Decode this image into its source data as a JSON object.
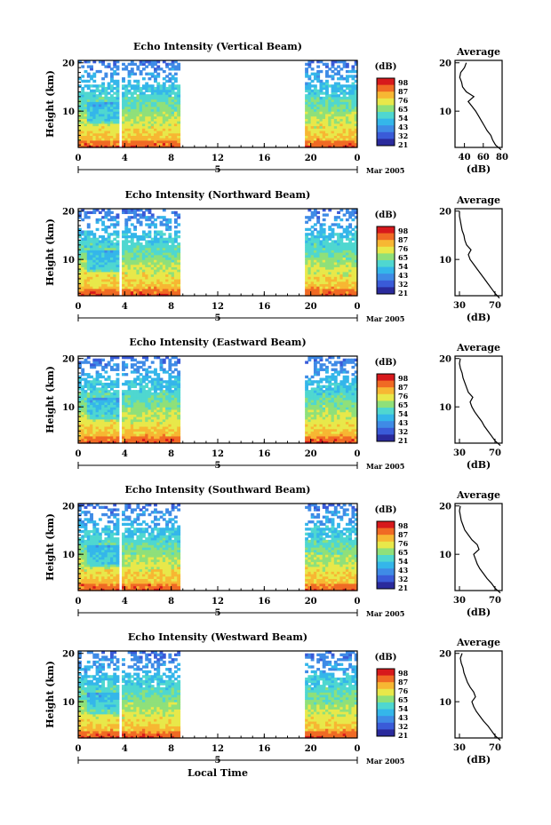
{
  "chart_data": [
    {
      "type": "heatmap",
      "title": "Echo Intensity (Vertical Beam)",
      "ylabel": "Height (km)",
      "x_ticks": [
        "0",
        "4",
        "8",
        "12",
        "16",
        "20",
        "0"
      ],
      "y_ticks": [
        "20",
        "10"
      ],
      "date_tick": "5",
      "date_label": "Mar 2005",
      "colorbar": {
        "unit": "(dB)",
        "ticks": [
          "98",
          "87",
          "76",
          "65",
          "54",
          "43",
          "32",
          "21"
        ]
      },
      "data_gap_hours": [
        [
          8.7,
          19.3
        ]
      ],
      "profile": {
        "title": "Average",
        "xlabel": "(dB)",
        "x_ticks": [
          "40",
          "60",
          "80"
        ],
        "x_tick_values": [
          40,
          60,
          80
        ],
        "xlim": [
          30,
          80
        ],
        "y_ticks": [
          "20",
          "10"
        ],
        "heights_km": [
          2,
          3,
          4,
          5,
          6,
          7,
          8,
          9,
          10,
          11,
          12,
          13,
          14,
          15,
          16,
          17,
          18,
          19,
          20
        ],
        "values_db": [
          79,
          73,
          70,
          68,
          64,
          61,
          58,
          55,
          52,
          48,
          44,
          50,
          42,
          38,
          37,
          35,
          36,
          40,
          42
        ]
      }
    },
    {
      "type": "heatmap",
      "title": "Echo Intensity (Northward Beam)",
      "ylabel": "Height (km)",
      "x_ticks": [
        "0",
        "4",
        "8",
        "12",
        "16",
        "20",
        "0"
      ],
      "y_ticks": [
        "20",
        "10"
      ],
      "date_tick": "5",
      "date_label": "Mar 2005",
      "colorbar": {
        "unit": "(dB)",
        "ticks": [
          "98",
          "87",
          "76",
          "65",
          "54",
          "43",
          "32",
          "21"
        ]
      },
      "data_gap_hours": [
        [
          8.7,
          19.3
        ]
      ],
      "profile": {
        "title": "Average",
        "xlabel": "(dB)",
        "x_ticks": [
          "30",
          "70"
        ],
        "x_tick_values": [
          30,
          70
        ],
        "xlim": [
          25,
          78
        ],
        "y_ticks": [
          "20",
          "10"
        ],
        "heights_km": [
          2,
          3,
          4,
          5,
          6,
          7,
          8,
          9,
          10,
          11,
          12,
          13,
          14,
          15,
          16,
          17,
          18,
          19,
          20
        ],
        "values_db": [
          75,
          70,
          66,
          62,
          58,
          54,
          50,
          46,
          42,
          40,
          43,
          38,
          36,
          35,
          33,
          32,
          31,
          30,
          30
        ]
      }
    },
    {
      "type": "heatmap",
      "title": "Echo Intensity (Eastward Beam)",
      "ylabel": "Height (km)",
      "x_ticks": [
        "0",
        "4",
        "8",
        "12",
        "16",
        "20",
        "0"
      ],
      "y_ticks": [
        "20",
        "10"
      ],
      "date_tick": "5",
      "date_label": "Mar 2005",
      "colorbar": {
        "unit": "(dB)",
        "ticks": [
          "98",
          "87",
          "76",
          "65",
          "54",
          "43",
          "32",
          "21"
        ]
      },
      "data_gap_hours": [
        [
          8.7,
          19.3
        ]
      ],
      "profile": {
        "title": "Average",
        "xlabel": "(dB)",
        "x_ticks": [
          "30",
          "70"
        ],
        "x_tick_values": [
          30,
          70
        ],
        "xlim": [
          25,
          78
        ],
        "y_ticks": [
          "20",
          "10"
        ],
        "heights_km": [
          2,
          3,
          4,
          5,
          6,
          7,
          8,
          9,
          10,
          11,
          12,
          13,
          14,
          15,
          16,
          17,
          18,
          19,
          20
        ],
        "values_db": [
          76,
          70,
          66,
          62,
          58,
          55,
          51,
          47,
          44,
          42,
          45,
          40,
          38,
          36,
          34,
          33,
          31,
          30,
          31
        ]
      }
    },
    {
      "type": "heatmap",
      "title": "Echo Intensity (Southward Beam)",
      "ylabel": "Height (km)",
      "x_ticks": [
        "0",
        "4",
        "8",
        "12",
        "16",
        "20",
        "0"
      ],
      "y_ticks": [
        "20",
        "10"
      ],
      "date_tick": "5",
      "date_label": "Mar 2005",
      "colorbar": {
        "unit": "(dB)",
        "ticks": [
          "98",
          "87",
          "76",
          "65",
          "54",
          "43",
          "32",
          "21"
        ]
      },
      "data_gap_hours": [
        [
          8.7,
          19.3
        ]
      ],
      "profile": {
        "title": "Average",
        "xlabel": "(dB)",
        "x_ticks": [
          "30",
          "70"
        ],
        "x_tick_values": [
          30,
          70
        ],
        "xlim": [
          25,
          78
        ],
        "y_ticks": [
          "20",
          "10"
        ],
        "heights_km": [
          2,
          3,
          4,
          5,
          6,
          7,
          8,
          9,
          10,
          11,
          12,
          13,
          14,
          15,
          16,
          17,
          18,
          19,
          20
        ],
        "values_db": [
          76,
          70,
          66,
          61,
          57,
          53,
          50,
          48,
          46,
          52,
          50,
          44,
          40,
          36,
          34,
          32,
          31,
          30,
          31
        ]
      }
    },
    {
      "type": "heatmap",
      "title": "Echo Intensity (Westward Beam)",
      "ylabel": "Height (km)",
      "x_ticks": [
        "0",
        "4",
        "8",
        "12",
        "16",
        "20",
        "0"
      ],
      "y_ticks": [
        "20",
        "10"
      ],
      "date_tick": "5",
      "date_label": "Mar 2005",
      "xlabel": "Local Time",
      "colorbar": {
        "unit": "(dB)",
        "ticks": [
          "98",
          "87",
          "76",
          "65",
          "54",
          "43",
          "32",
          "21"
        ]
      },
      "data_gap_hours": [
        [
          8.7,
          19.3
        ]
      ],
      "profile": {
        "title": "Average",
        "xlabel": "(dB)",
        "x_ticks": [
          "30",
          "70"
        ],
        "x_tick_values": [
          30,
          70
        ],
        "xlim": [
          25,
          78
        ],
        "y_ticks": [
          "20",
          "10"
        ],
        "heights_km": [
          2,
          3,
          4,
          5,
          6,
          7,
          8,
          9,
          10,
          11,
          12,
          13,
          14,
          15,
          16,
          17,
          18,
          19,
          20
        ],
        "values_db": [
          76,
          70,
          66,
          62,
          57,
          53,
          49,
          46,
          44,
          48,
          46,
          42,
          39,
          37,
          35,
          34,
          32,
          31,
          33
        ]
      }
    }
  ]
}
